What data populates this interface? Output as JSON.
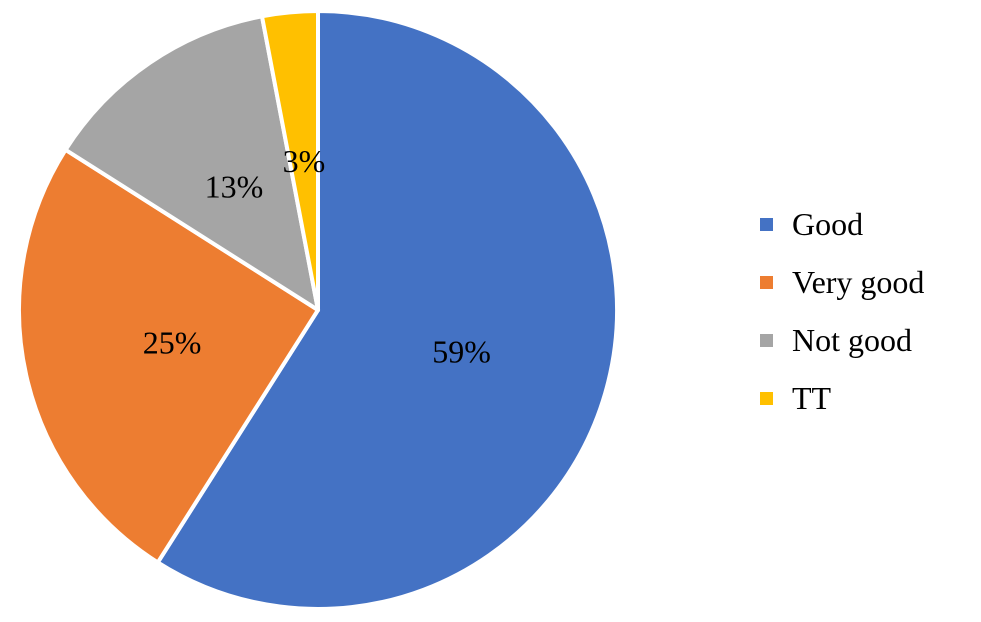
{
  "chart_data": {
    "type": "pie",
    "categories": [
      "Good",
      "Very good",
      "Not good",
      "TT"
    ],
    "values": [
      59,
      25,
      13,
      3
    ],
    "labels": [
      "59%",
      "25%",
      "13%",
      "3%"
    ],
    "colors": [
      "#4472C4",
      "#ED7D31",
      "#A5A5A5",
      "#FFC000"
    ],
    "title": "",
    "legend_position": "right",
    "start_angle_deg": 0,
    "direction": "clockwise",
    "label_color": "#000000",
    "slice_border_color": "#FFFFFF",
    "background_color": "#FFFFFF"
  },
  "legend": {
    "items": [
      {
        "label": "Good",
        "color": "#4472C4"
      },
      {
        "label": "Very good",
        "color": "#ED7D31"
      },
      {
        "label": "Not good",
        "color": "#A5A5A5"
      },
      {
        "label": "TT",
        "color": "#FFC000"
      }
    ]
  }
}
